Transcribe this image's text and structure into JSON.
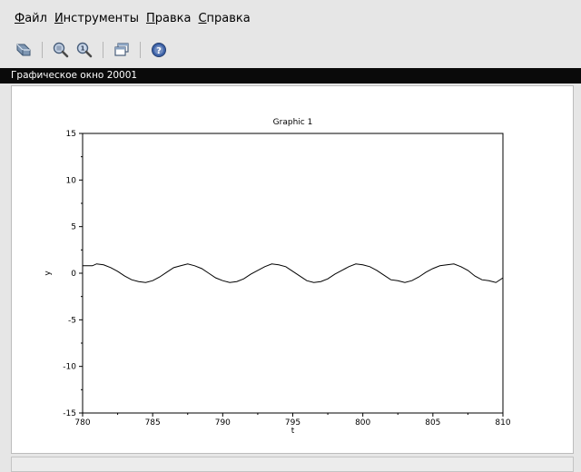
{
  "menu": {
    "items": [
      {
        "mnemonic": "Ф",
        "rest": "айл"
      },
      {
        "mnemonic": "И",
        "rest": "нструменты"
      },
      {
        "mnemonic": "П",
        "rest": "равка"
      },
      {
        "mnemonic": "С",
        "rest": "правка"
      }
    ]
  },
  "toolbar": {
    "buttons": [
      "rotate-icon",
      "zoom-in-icon",
      "zoom-original-icon",
      "windows-icon",
      "help-icon"
    ]
  },
  "window": {
    "title": "Графическое окно 20001"
  },
  "chart_data": {
    "type": "line",
    "title": "Graphic 1",
    "xlabel": "t",
    "ylabel": "y",
    "xlim": [
      780,
      810
    ],
    "ylim": [
      -15,
      15
    ],
    "x_ticks": [
      "780",
      "785",
      "790",
      "795",
      "800",
      "805",
      "810"
    ],
    "y_ticks": [
      "15",
      "10",
      "5",
      "0",
      "-5",
      "-10",
      "-15"
    ],
    "grid": false,
    "series": [
      {
        "color": "#000000",
        "x": [
          780,
          780.7,
          781,
          781.5,
          782,
          782.5,
          783,
          783.5,
          784,
          784.5,
          785,
          785.5,
          786,
          786.5,
          787,
          787.5,
          788,
          788.5,
          789,
          789.5,
          790,
          790.5,
          791,
          791.5,
          792,
          792.5,
          793,
          793.5,
          794,
          794.5,
          795,
          795.5,
          796,
          796.5,
          797,
          797.5,
          798,
          798.5,
          799,
          799.5,
          800,
          800.5,
          801,
          801.5,
          802,
          802.5,
          803,
          803.5,
          804,
          804.5,
          805,
          805.5,
          806,
          806.5,
          807,
          807.5,
          808,
          808.5,
          809,
          809.5,
          810
        ],
        "y": [
          0.8,
          0.8,
          1.0,
          0.9,
          0.6,
          0.2,
          -0.3,
          -0.7,
          -0.9,
          -1.0,
          -0.8,
          -0.4,
          0.1,
          0.6,
          0.8,
          1.0,
          0.8,
          0.5,
          0.0,
          -0.5,
          -0.8,
          -1.0,
          -0.9,
          -0.6,
          -0.1,
          0.3,
          0.7,
          1.0,
          0.9,
          0.7,
          0.2,
          -0.3,
          -0.8,
          -1.0,
          -0.9,
          -0.6,
          -0.1,
          0.3,
          0.7,
          1.0,
          0.9,
          0.7,
          0.3,
          -0.2,
          -0.7,
          -0.8,
          -1.0,
          -0.8,
          -0.4,
          0.1,
          0.5,
          0.8,
          0.9,
          1.0,
          0.7,
          0.3,
          -0.3,
          -0.7,
          -0.8,
          -1.0,
          -0.5
        ]
      }
    ]
  }
}
